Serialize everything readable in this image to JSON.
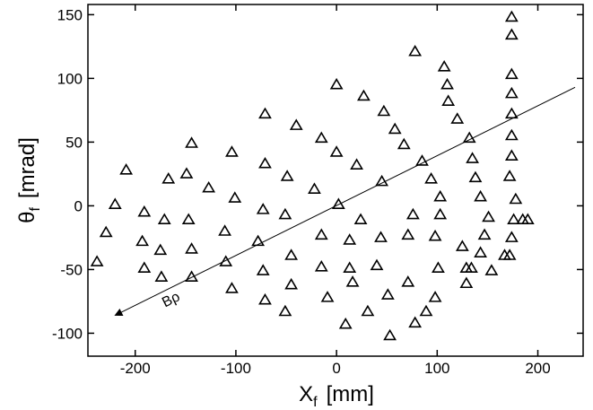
{
  "chart_data": {
    "type": "scatter",
    "xlabel": {
      "symbol": "X",
      "subscript": "f",
      "unit": "[mm]"
    },
    "ylabel": {
      "symbol": "θ",
      "subscript": "f",
      "unit": "[mrad]"
    },
    "xlim": [
      -247,
      245
    ],
    "ylim": [
      -118,
      158
    ],
    "xticks": [
      -200,
      -100,
      0,
      100,
      200
    ],
    "yticks": [
      -100,
      -50,
      0,
      50,
      100,
      150
    ],
    "marker": "open-triangle",
    "color": "#000000",
    "reference_line": {
      "x": [
        -215,
        237
      ],
      "y": [
        -84,
        93
      ],
      "label": "Bρ"
    },
    "series": [
      {
        "color": "#000000",
        "x": [
          -209,
          -220,
          -229,
          -238,
          -191,
          -193,
          -191,
          -167,
          -171,
          -175,
          -174,
          -144,
          -149,
          -147,
          -144,
          -144,
          -104,
          -127,
          -101,
          -111,
          -110,
          -104,
          -71,
          -71,
          -73,
          -78,
          -73,
          -71,
          -40,
          -49,
          -51,
          -45,
          -45,
          -51,
          -15,
          -22,
          -15,
          -15,
          -9,
          0,
          0,
          2,
          13,
          13,
          9,
          27,
          20,
          24,
          16,
          31,
          47,
          45,
          44,
          40,
          51,
          58,
          53,
          67,
          76,
          71,
          71,
          78,
          78,
          85,
          94,
          103,
          103,
          98,
          101,
          98,
          89,
          107,
          110,
          111,
          120,
          125,
          129,
          129,
          132,
          135,
          138,
          143,
          151,
          147,
          143,
          134,
          174,
          174,
          174,
          174,
          174,
          174,
          174,
          172,
          178,
          176,
          174,
          172,
          154,
          185,
          190,
          167
        ],
        "y": [
          28,
          1,
          -21,
          -44,
          -5,
          -28,
          -49,
          21,
          -11,
          -35,
          -56,
          49,
          25,
          -11,
          -34,
          -56,
          42,
          14,
          6,
          -20,
          -44,
          -65,
          72,
          33,
          -3,
          -28,
          -51,
          -74,
          63,
          23,
          -7,
          -39,
          -62,
          -83,
          53,
          13,
          -23,
          -48,
          -72,
          95,
          42,
          1,
          -27,
          -49,
          -93,
          86,
          32,
          -11,
          -60,
          -83,
          74,
          19,
          -25,
          -47,
          -70,
          60,
          -102,
          48,
          -7,
          -23,
          -60,
          -92,
          121,
          35,
          21,
          7,
          -7,
          -24,
          -49,
          -72,
          -83,
          109,
          95,
          82,
          68,
          -32,
          -49,
          -61,
          53,
          37,
          22,
          7,
          -9,
          -23,
          -37,
          -49,
          148,
          134,
          103,
          88,
          72,
          55,
          39,
          23,
          5,
          -11,
          -25,
          -39,
          -51,
          -11,
          -11,
          -39
        ]
      }
    ]
  }
}
